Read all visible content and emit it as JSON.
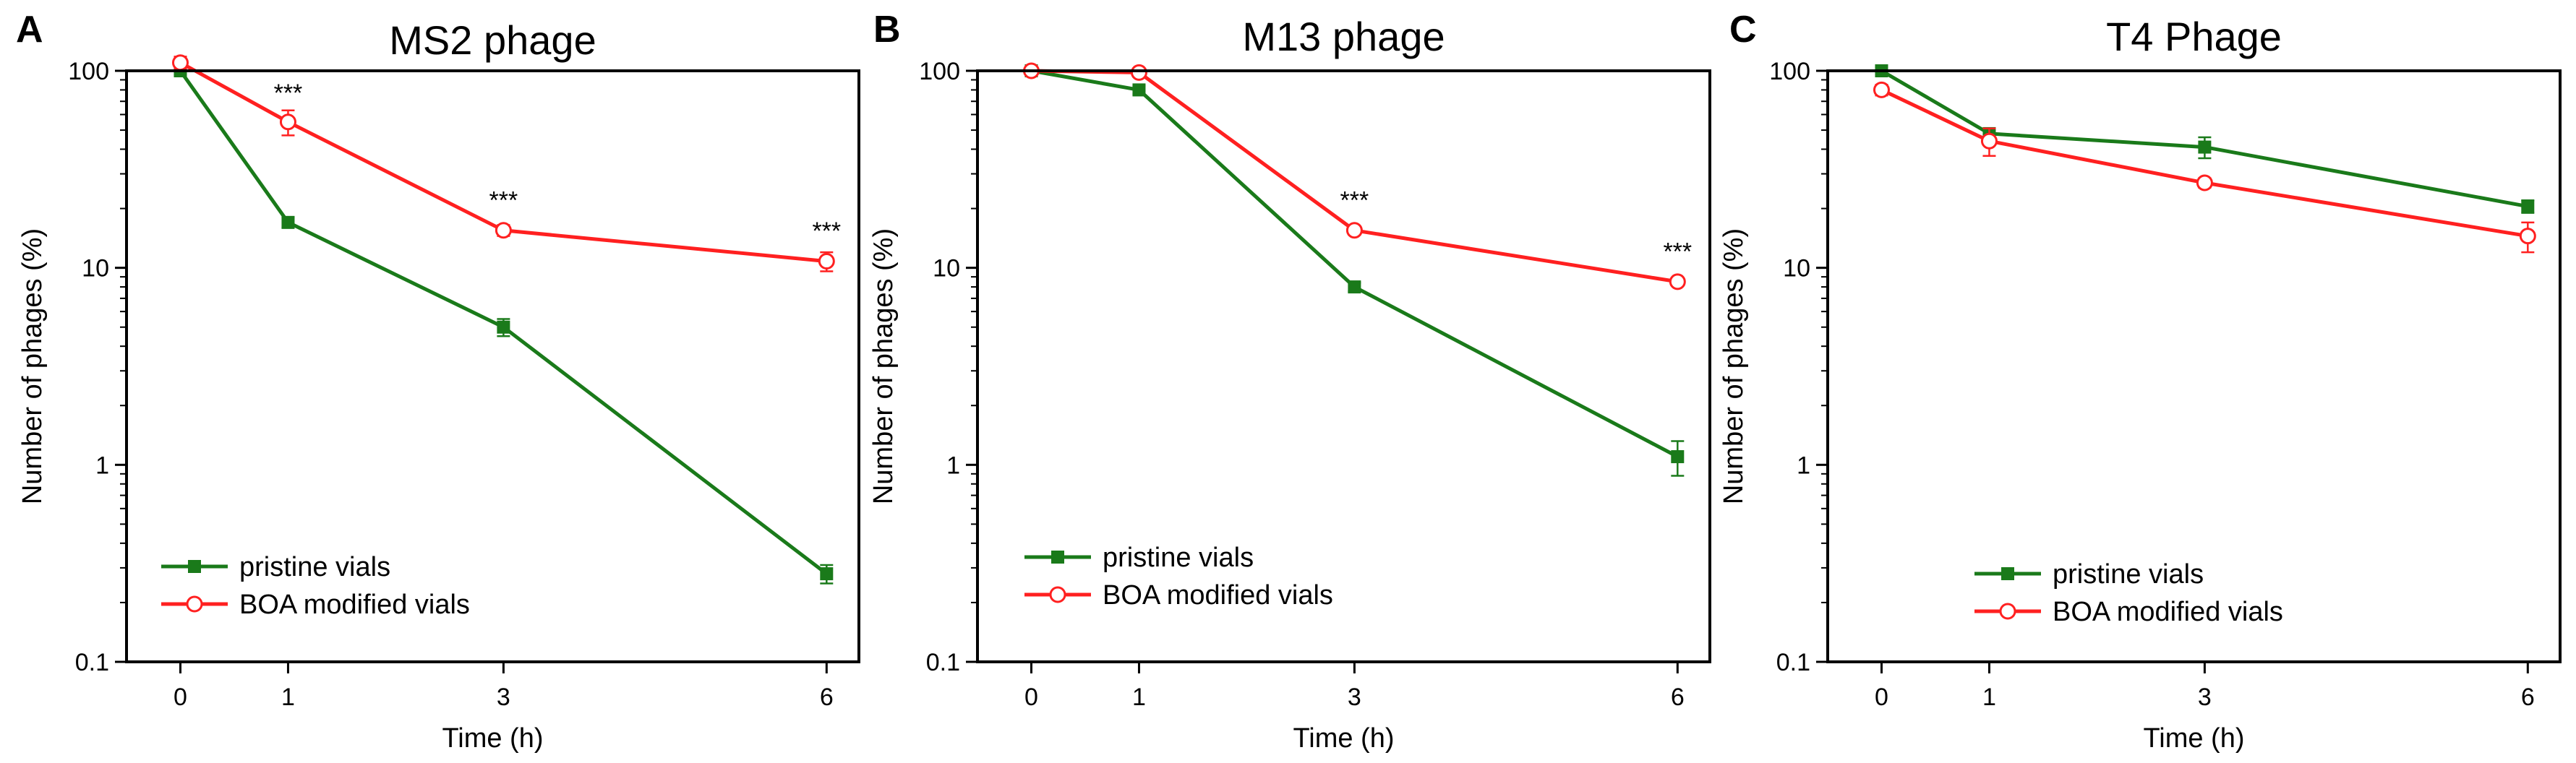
{
  "chart_data": [
    {
      "type": "line",
      "panel_letter": "A",
      "title": "MS2 phage",
      "xlabel": "Time (h)",
      "ylabel": "Number of phages (%)",
      "yscale": "log",
      "ylim": [
        0.1,
        100
      ],
      "yticks": [
        0.1,
        1,
        10,
        100
      ],
      "ytick_labels": [
        "0.1",
        "1",
        "10",
        "100"
      ],
      "xlim": [
        -0.5,
        6.3
      ],
      "xticks": [
        0,
        1,
        3,
        6
      ],
      "xtick_labels": [
        "0",
        "1",
        "3",
        "6"
      ],
      "legend_position": "bottom-left",
      "series": [
        {
          "name": "pristine vials",
          "color": "#1a7a1a",
          "marker": "square-filled",
          "x": [
            0,
            1,
            3,
            6
          ],
          "values": [
            100,
            17,
            5,
            0.28
          ],
          "errors": [
            4,
            1,
            0.5,
            0.03
          ]
        },
        {
          "name": "BOA modified vials",
          "color": "#ff2020",
          "marker": "circle-open",
          "x": [
            0,
            1,
            3,
            6
          ],
          "values": [
            110,
            55,
            15.5,
            10.8
          ],
          "errors": [
            8,
            8,
            1,
            1.2
          ]
        }
      ],
      "annotations": [
        {
          "text": "***",
          "x": 1,
          "y": 70
        },
        {
          "text": "***",
          "x": 3,
          "y": 20
        },
        {
          "text": "***",
          "x": 6,
          "y": 14
        }
      ]
    },
    {
      "type": "line",
      "panel_letter": "B",
      "title": "M13 phage",
      "xlabel": "Time (h)",
      "ylabel": "Number of phages (%)",
      "yscale": "log",
      "ylim": [
        0.1,
        100
      ],
      "yticks": [
        0.1,
        1,
        10,
        100
      ],
      "ytick_labels": [
        "0.1",
        "1",
        "10",
        "100"
      ],
      "xlim": [
        -0.5,
        6.3
      ],
      "xticks": [
        0,
        1,
        3,
        6
      ],
      "xtick_labels": [
        "0",
        "1",
        "3",
        "6"
      ],
      "legend_position": "bottom-left",
      "series": [
        {
          "name": "pristine vials",
          "color": "#1a7a1a",
          "marker": "square-filled",
          "x": [
            0,
            1,
            3,
            6
          ],
          "values": [
            100,
            80,
            8,
            1.1
          ],
          "errors": [
            4,
            4,
            0.4,
            0.22
          ]
        },
        {
          "name": "BOA modified vials",
          "color": "#ff2020",
          "marker": "circle-open",
          "x": [
            0,
            1,
            3,
            6
          ],
          "values": [
            100,
            98,
            15.5,
            8.5
          ],
          "errors": [
            5,
            5,
            0.8,
            0.4
          ]
        }
      ],
      "annotations": [
        {
          "text": "***",
          "x": 3,
          "y": 20
        },
        {
          "text": "***",
          "x": 6,
          "y": 11
        }
      ]
    },
    {
      "type": "line",
      "panel_letter": "C",
      "title": "T4 Phage",
      "xlabel": "Time (h)",
      "ylabel": "Number of phages (%)",
      "yscale": "log",
      "ylim": [
        0.1,
        100
      ],
      "yticks": [
        0.1,
        1,
        10,
        100
      ],
      "ytick_labels": [
        "0.1",
        "1",
        "10",
        "100"
      ],
      "xlim": [
        -0.5,
        6.3
      ],
      "xticks": [
        0,
        1,
        3,
        6
      ],
      "xtick_labels": [
        "0",
        "1",
        "3",
        "6"
      ],
      "legend_position": "bottom-left",
      "series": [
        {
          "name": "pristine vials",
          "color": "#1a7a1a",
          "marker": "square-filled",
          "x": [
            0,
            1,
            3,
            6
          ],
          "values": [
            100,
            48,
            41,
            20.5
          ],
          "errors": [
            4,
            3,
            5,
            1.5
          ]
        },
        {
          "name": "BOA modified vials",
          "color": "#ff2020",
          "marker": "circle-open",
          "x": [
            0,
            1,
            3,
            6
          ],
          "values": [
            80,
            44,
            27,
            14.5
          ],
          "errors": [
            5,
            7,
            1.5,
            2.5
          ]
        }
      ],
      "annotations": []
    }
  ]
}
